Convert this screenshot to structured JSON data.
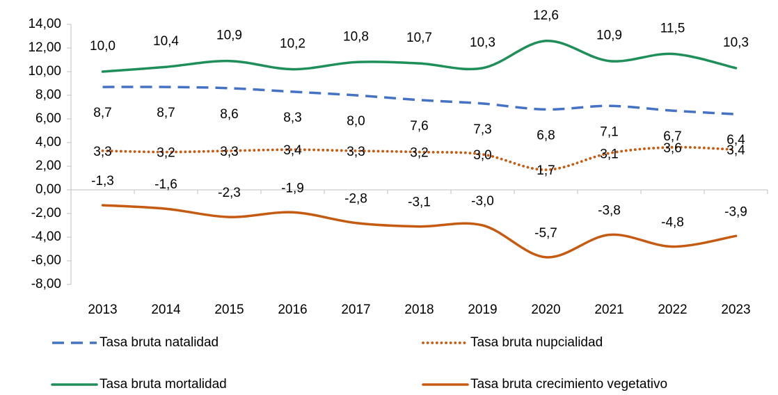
{
  "chart_data": {
    "type": "line",
    "categories": [
      "2013",
      "2014",
      "2015",
      "2016",
      "2017",
      "2018",
      "2019",
      "2020",
      "2021",
      "2022",
      "2023"
    ],
    "series": [
      {
        "name": "Tasa bruta natalidad",
        "color": "#4472c4",
        "style": "dashed",
        "values": [
          8.7,
          8.7,
          8.6,
          8.3,
          8.0,
          7.6,
          7.3,
          6.8,
          7.1,
          6.7,
          6.4
        ],
        "value_labels": [
          "8,7",
          "8,7",
          "8,6",
          "8,3",
          "8,0",
          "7,6",
          "7,3",
          "6,8",
          "7,1",
          "6,7",
          "6,4"
        ]
      },
      {
        "name": "Tasa bruta nupcialidad",
        "color": "#c55a11",
        "style": "dotted",
        "values": [
          3.3,
          3.2,
          3.3,
          3.4,
          3.3,
          3.2,
          3.0,
          1.7,
          3.1,
          3.6,
          3.4
        ],
        "value_labels": [
          "3,3",
          "3,2",
          "3,3",
          "3,4",
          "3,3",
          "3,2",
          "3,0",
          "1,7",
          "3,1",
          "3,6",
          "3,4"
        ]
      },
      {
        "name": "Tasa bruta mortalidad",
        "color": "#1f8f5a",
        "style": "solid",
        "values": [
          10.0,
          10.4,
          10.9,
          10.2,
          10.8,
          10.7,
          10.3,
          12.6,
          10.9,
          11.5,
          10.3
        ],
        "value_labels": [
          "10,0",
          "10,4",
          "10,9",
          "10,2",
          "10,8",
          "10,7",
          "10,3",
          "12,6",
          "10,9",
          "11,5",
          "10,3"
        ]
      },
      {
        "name": "Tasa bruta crecimiento vegetativo",
        "color": "#c55a11",
        "style": "solid",
        "values": [
          -1.3,
          -1.6,
          -2.3,
          -1.9,
          -2.8,
          -3.1,
          -3.0,
          -5.7,
          -3.8,
          -4.8,
          -3.9
        ],
        "value_labels": [
          "-1,3",
          "-1,6",
          "-2,3",
          "-1,9",
          "-2,8",
          "-3,1",
          "-3,0",
          "-5,7",
          "-3,8",
          "-4,8",
          "-3,9"
        ]
      }
    ],
    "ylim": [
      -8,
      14
    ],
    "yticks": [
      {
        "value": -8,
        "label": "-8,00"
      },
      {
        "value": -6,
        "label": "-6,00"
      },
      {
        "value": -4,
        "label": "-4,00"
      },
      {
        "value": -2,
        "label": "-2,00"
      },
      {
        "value": 0,
        "label": "0,00"
      },
      {
        "value": 2,
        "label": "2,00"
      },
      {
        "value": 4,
        "label": "4,00"
      },
      {
        "value": 6,
        "label": "6,00"
      },
      {
        "value": 8,
        "label": "8,00"
      },
      {
        "value": 10,
        "label": "10,00"
      },
      {
        "value": 12,
        "label": "12,00"
      },
      {
        "value": 14,
        "label": "14,00"
      }
    ],
    "grid": false,
    "legend": "bottom",
    "smooth": true
  }
}
